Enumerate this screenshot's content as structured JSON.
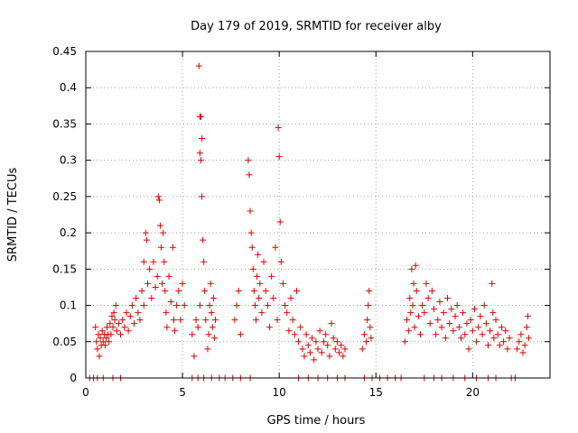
{
  "chart_data": {
    "type": "scatter",
    "title": "Day 179 of 2019, SRMTID for receiver alby",
    "xlabel": "GPS time / hours",
    "ylabel": "SRMTID / TECUs",
    "xlim": [
      0,
      24
    ],
    "ylim": [
      0,
      0.45
    ],
    "xticks": [
      0,
      5,
      10,
      15,
      20
    ],
    "xtick_labels": [
      "0",
      "5",
      "10",
      "15",
      "20"
    ],
    "yticks": [
      0,
      0.05,
      0.1,
      0.15,
      0.2,
      0.25,
      0.3,
      0.35,
      0.4,
      0.45
    ],
    "ytick_labels": [
      "0",
      "0.05",
      "0.1",
      "0.15",
      "0.2",
      "0.25",
      "0.3",
      "0.35",
      "0.4",
      "0.45"
    ],
    "grid": true,
    "marker": "+",
    "color": "#e00000",
    "series": [
      {
        "name": "SRMTID",
        "points": [
          [
            0.2,
            0
          ],
          [
            0.4,
            0
          ],
          [
            0.6,
            0
          ],
          [
            0.9,
            0
          ],
          [
            1.4,
            0
          ],
          [
            1.8,
            0
          ],
          [
            0.5,
            0.07
          ],
          [
            0.55,
            0.05
          ],
          [
            0.6,
            0.04
          ],
          [
            0.65,
            0.06
          ],
          [
            0.7,
            0.03
          ],
          [
            0.75,
            0.055
          ],
          [
            0.8,
            0.045
          ],
          [
            0.85,
            0.065
          ],
          [
            0.9,
            0.05
          ],
          [
            0.95,
            0.06
          ],
          [
            1.0,
            0.045
          ],
          [
            1.05,
            0.055
          ],
          [
            1.1,
            0.07
          ],
          [
            1.15,
            0.06
          ],
          [
            1.2,
            0.05
          ],
          [
            1.25,
            0.075
          ],
          [
            1.3,
            0.06
          ],
          [
            1.35,
            0.085
          ],
          [
            1.4,
            0.07
          ],
          [
            1.45,
            0.09
          ],
          [
            1.5,
            0.08
          ],
          [
            1.55,
            0.1
          ],
          [
            1.6,
            0.065
          ],
          [
            1.7,
            0.075
          ],
          [
            1.8,
            0.06
          ],
          [
            1.9,
            0.08
          ],
          [
            2.0,
            0.07
          ],
          [
            2.1,
            0.09
          ],
          [
            2.2,
            0.065
          ],
          [
            2.3,
            0.085
          ],
          [
            2.4,
            0.1
          ],
          [
            2.5,
            0.075
          ],
          [
            2.6,
            0.11
          ],
          [
            2.7,
            0.09
          ],
          [
            2.8,
            0.08
          ],
          [
            2.9,
            0.12
          ],
          [
            3.0,
            0.1
          ],
          [
            3.0,
            0.16
          ],
          [
            3.1,
            0.2
          ],
          [
            3.15,
            0.19
          ],
          [
            3.2,
            0.13
          ],
          [
            3.3,
            0.15
          ],
          [
            3.4,
            0.11
          ],
          [
            3.5,
            0.16
          ],
          [
            3.6,
            0.125
          ],
          [
            3.7,
            0.14
          ],
          [
            3.75,
            0.25
          ],
          [
            3.8,
            0.245
          ],
          [
            3.85,
            0.21
          ],
          [
            3.9,
            0.18
          ],
          [
            3.95,
            0.13
          ],
          [
            4.0,
            0.2
          ],
          [
            4.05,
            0.16
          ],
          [
            4.1,
            0.12
          ],
          [
            4.15,
            0.09
          ],
          [
            4.2,
            0.07
          ],
          [
            4.3,
            0.14
          ],
          [
            4.4,
            0.105
          ],
          [
            4.5,
            0.18
          ],
          [
            4.55,
            0.08
          ],
          [
            4.6,
            0.065
          ],
          [
            4.7,
            0.1
          ],
          [
            4.8,
            0.12
          ],
          [
            4.9,
            0.08
          ],
          [
            5.0,
            0.13
          ],
          [
            5.1,
            0.1
          ],
          [
            5.5,
            0.06
          ],
          [
            5.6,
            0.03
          ],
          [
            5.7,
            0.08
          ],
          [
            5.8,
            0.07
          ],
          [
            5.9,
            0.1
          ],
          [
            5.85,
            0.43
          ],
          [
            5.9,
            0.36
          ],
          [
            5.95,
            0.36
          ],
          [
            5.9,
            0.31
          ],
          [
            5.95,
            0.3
          ],
          [
            6.0,
            0.33
          ],
          [
            6.0,
            0.25
          ],
          [
            6.05,
            0.19
          ],
          [
            6.1,
            0.16
          ],
          [
            6.15,
            0.12
          ],
          [
            6.2,
            0.08
          ],
          [
            6.3,
            0.04
          ],
          [
            6.35,
            0.06
          ],
          [
            6.4,
            0.1
          ],
          [
            6.45,
            0.13
          ],
          [
            6.5,
            0.09
          ],
          [
            6.55,
            0.07
          ],
          [
            6.6,
            0.11
          ],
          [
            6.65,
            0.055
          ],
          [
            6.7,
            0.08
          ],
          [
            5.5,
            0
          ],
          [
            5.8,
            0
          ],
          [
            6.1,
            0
          ],
          [
            6.5,
            0
          ],
          [
            6.9,
            0
          ],
          [
            7.2,
            0
          ],
          [
            7.6,
            0
          ],
          [
            8.0,
            0
          ],
          [
            8.5,
            0
          ],
          [
            7.7,
            0.08
          ],
          [
            7.8,
            0.1
          ],
          [
            7.9,
            0.12
          ],
          [
            8.0,
            0.06
          ],
          [
            8.4,
            0.3
          ],
          [
            8.45,
            0.28
          ],
          [
            8.5,
            0.23
          ],
          [
            8.55,
            0.2
          ],
          [
            8.6,
            0.18
          ],
          [
            8.65,
            0.15
          ],
          [
            8.7,
            0.12
          ],
          [
            8.75,
            0.1
          ],
          [
            8.8,
            0.08
          ],
          [
            8.85,
            0.14
          ],
          [
            8.9,
            0.17
          ],
          [
            8.95,
            0.11
          ],
          [
            9.0,
            0.13
          ],
          [
            9.1,
            0.09
          ],
          [
            9.2,
            0.16
          ],
          [
            9.3,
            0.12
          ],
          [
            9.4,
            0.1
          ],
          [
            9.5,
            0.07
          ],
          [
            9.6,
            0.14
          ],
          [
            9.7,
            0.11
          ],
          [
            9.8,
            0.18
          ],
          [
            9.9,
            0.08
          ],
          [
            9.95,
            0.345
          ],
          [
            10.0,
            0.305
          ],
          [
            10.05,
            0.215
          ],
          [
            10.1,
            0.16
          ],
          [
            10.2,
            0.13
          ],
          [
            10.3,
            0.1
          ],
          [
            10.4,
            0.09
          ],
          [
            10.5,
            0.065
          ],
          [
            10.6,
            0.11
          ],
          [
            10.7,
            0.08
          ],
          [
            10.8,
            0.06
          ],
          [
            10.9,
            0.12
          ],
          [
            11.0,
            0.05
          ],
          [
            11.1,
            0.07
          ],
          [
            11.2,
            0.04
          ],
          [
            11.3,
            0.03
          ],
          [
            11.4,
            0.06
          ],
          [
            11.5,
            0.045
          ],
          [
            11.6,
            0.035
          ],
          [
            11.7,
            0.055
          ],
          [
            11.8,
            0.025
          ],
          [
            11.9,
            0.05
          ],
          [
            12.0,
            0.04
          ],
          [
            12.1,
            0.065
          ],
          [
            12.2,
            0.035
          ],
          [
            12.3,
            0.05
          ],
          [
            12.4,
            0.06
          ],
          [
            12.5,
            0.045
          ],
          [
            12.6,
            0.03
          ],
          [
            12.7,
            0.075
          ],
          [
            12.8,
            0.055
          ],
          [
            12.9,
            0.04
          ],
          [
            13.0,
            0.05
          ],
          [
            13.1,
            0.035
          ],
          [
            13.2,
            0.045
          ],
          [
            13.3,
            0.03
          ],
          [
            13.4,
            0.04
          ],
          [
            11.0,
            0
          ],
          [
            11.5,
            0
          ],
          [
            12.0,
            0
          ],
          [
            12.5,
            0
          ],
          [
            13.0,
            0
          ],
          [
            13.4,
            0
          ],
          [
            14.3,
            0.04
          ],
          [
            14.4,
            0.06
          ],
          [
            14.5,
            0.05
          ],
          [
            14.55,
            0.08
          ],
          [
            14.6,
            0.1
          ],
          [
            14.65,
            0.12
          ],
          [
            14.7,
            0.07
          ],
          [
            14.75,
            0.055
          ],
          [
            14.4,
            0
          ],
          [
            14.8,
            0
          ],
          [
            15.2,
            0
          ],
          [
            15.6,
            0
          ],
          [
            16.0,
            0
          ],
          [
            16.3,
            0
          ],
          [
            16.5,
            0.05
          ],
          [
            16.6,
            0.08
          ],
          [
            16.7,
            0.065
          ],
          [
            16.75,
            0.11
          ],
          [
            16.8,
            0.09
          ],
          [
            16.85,
            0.15
          ],
          [
            16.9,
            0.1
          ],
          [
            16.95,
            0.13
          ],
          [
            17.0,
            0.07
          ],
          [
            17.05,
            0.155
          ],
          [
            17.1,
            0.12
          ],
          [
            17.2,
            0.085
          ],
          [
            17.3,
            0.06
          ],
          [
            17.4,
            0.1
          ],
          [
            17.5,
            0.09
          ],
          [
            17.6,
            0.13
          ],
          [
            17.7,
            0.11
          ],
          [
            17.8,
            0.075
          ],
          [
            17.9,
            0.12
          ],
          [
            18.0,
            0.095
          ],
          [
            18.1,
            0.06
          ],
          [
            18.2,
            0.08
          ],
          [
            18.3,
            0.105
          ],
          [
            18.4,
            0.07
          ],
          [
            18.5,
            0.09
          ],
          [
            18.6,
            0.055
          ],
          [
            18.7,
            0.11
          ],
          [
            18.8,
            0.075
          ],
          [
            18.9,
            0.095
          ],
          [
            19.0,
            0.065
          ],
          [
            19.1,
            0.085
          ],
          [
            19.2,
            0.1
          ],
          [
            19.3,
            0.07
          ],
          [
            19.4,
            0.055
          ],
          [
            19.5,
            0.09
          ],
          [
            19.6,
            0.06
          ],
          [
            19.7,
            0.075
          ],
          [
            19.8,
            0.04
          ],
          [
            19.9,
            0.08
          ],
          [
            20.0,
            0.065
          ],
          [
            20.1,
            0.095
          ],
          [
            20.2,
            0.05
          ],
          [
            20.3,
            0.07
          ],
          [
            20.4,
            0.085
          ],
          [
            20.5,
            0.06
          ],
          [
            20.6,
            0.1
          ],
          [
            20.7,
            0.075
          ],
          [
            20.8,
            0.045
          ],
          [
            20.9,
            0.065
          ],
          [
            21.0,
            0.13
          ],
          [
            21.05,
            0.09
          ],
          [
            21.1,
            0.055
          ],
          [
            21.2,
            0.08
          ],
          [
            21.3,
            0.06
          ],
          [
            21.4,
            0.045
          ],
          [
            21.5,
            0.07
          ],
          [
            21.6,
            0.05
          ],
          [
            21.7,
            0.065
          ],
          [
            21.8,
            0.04
          ],
          [
            21.9,
            0.055
          ],
          [
            22.3,
            0.04
          ],
          [
            22.4,
            0.05
          ],
          [
            22.5,
            0.06
          ],
          [
            22.6,
            0.035
          ],
          [
            22.7,
            0.045
          ],
          [
            22.8,
            0.07
          ],
          [
            22.85,
            0.085
          ],
          [
            22.9,
            0.055
          ],
          [
            17.5,
            0
          ],
          [
            18.0,
            0
          ],
          [
            18.4,
            0
          ],
          [
            19.0,
            0
          ],
          [
            19.6,
            0
          ],
          [
            20.2,
            0
          ],
          [
            20.8,
            0
          ],
          [
            21.2,
            0
          ],
          [
            22.0,
            0
          ],
          [
            22.2,
            0
          ]
        ]
      }
    ]
  }
}
